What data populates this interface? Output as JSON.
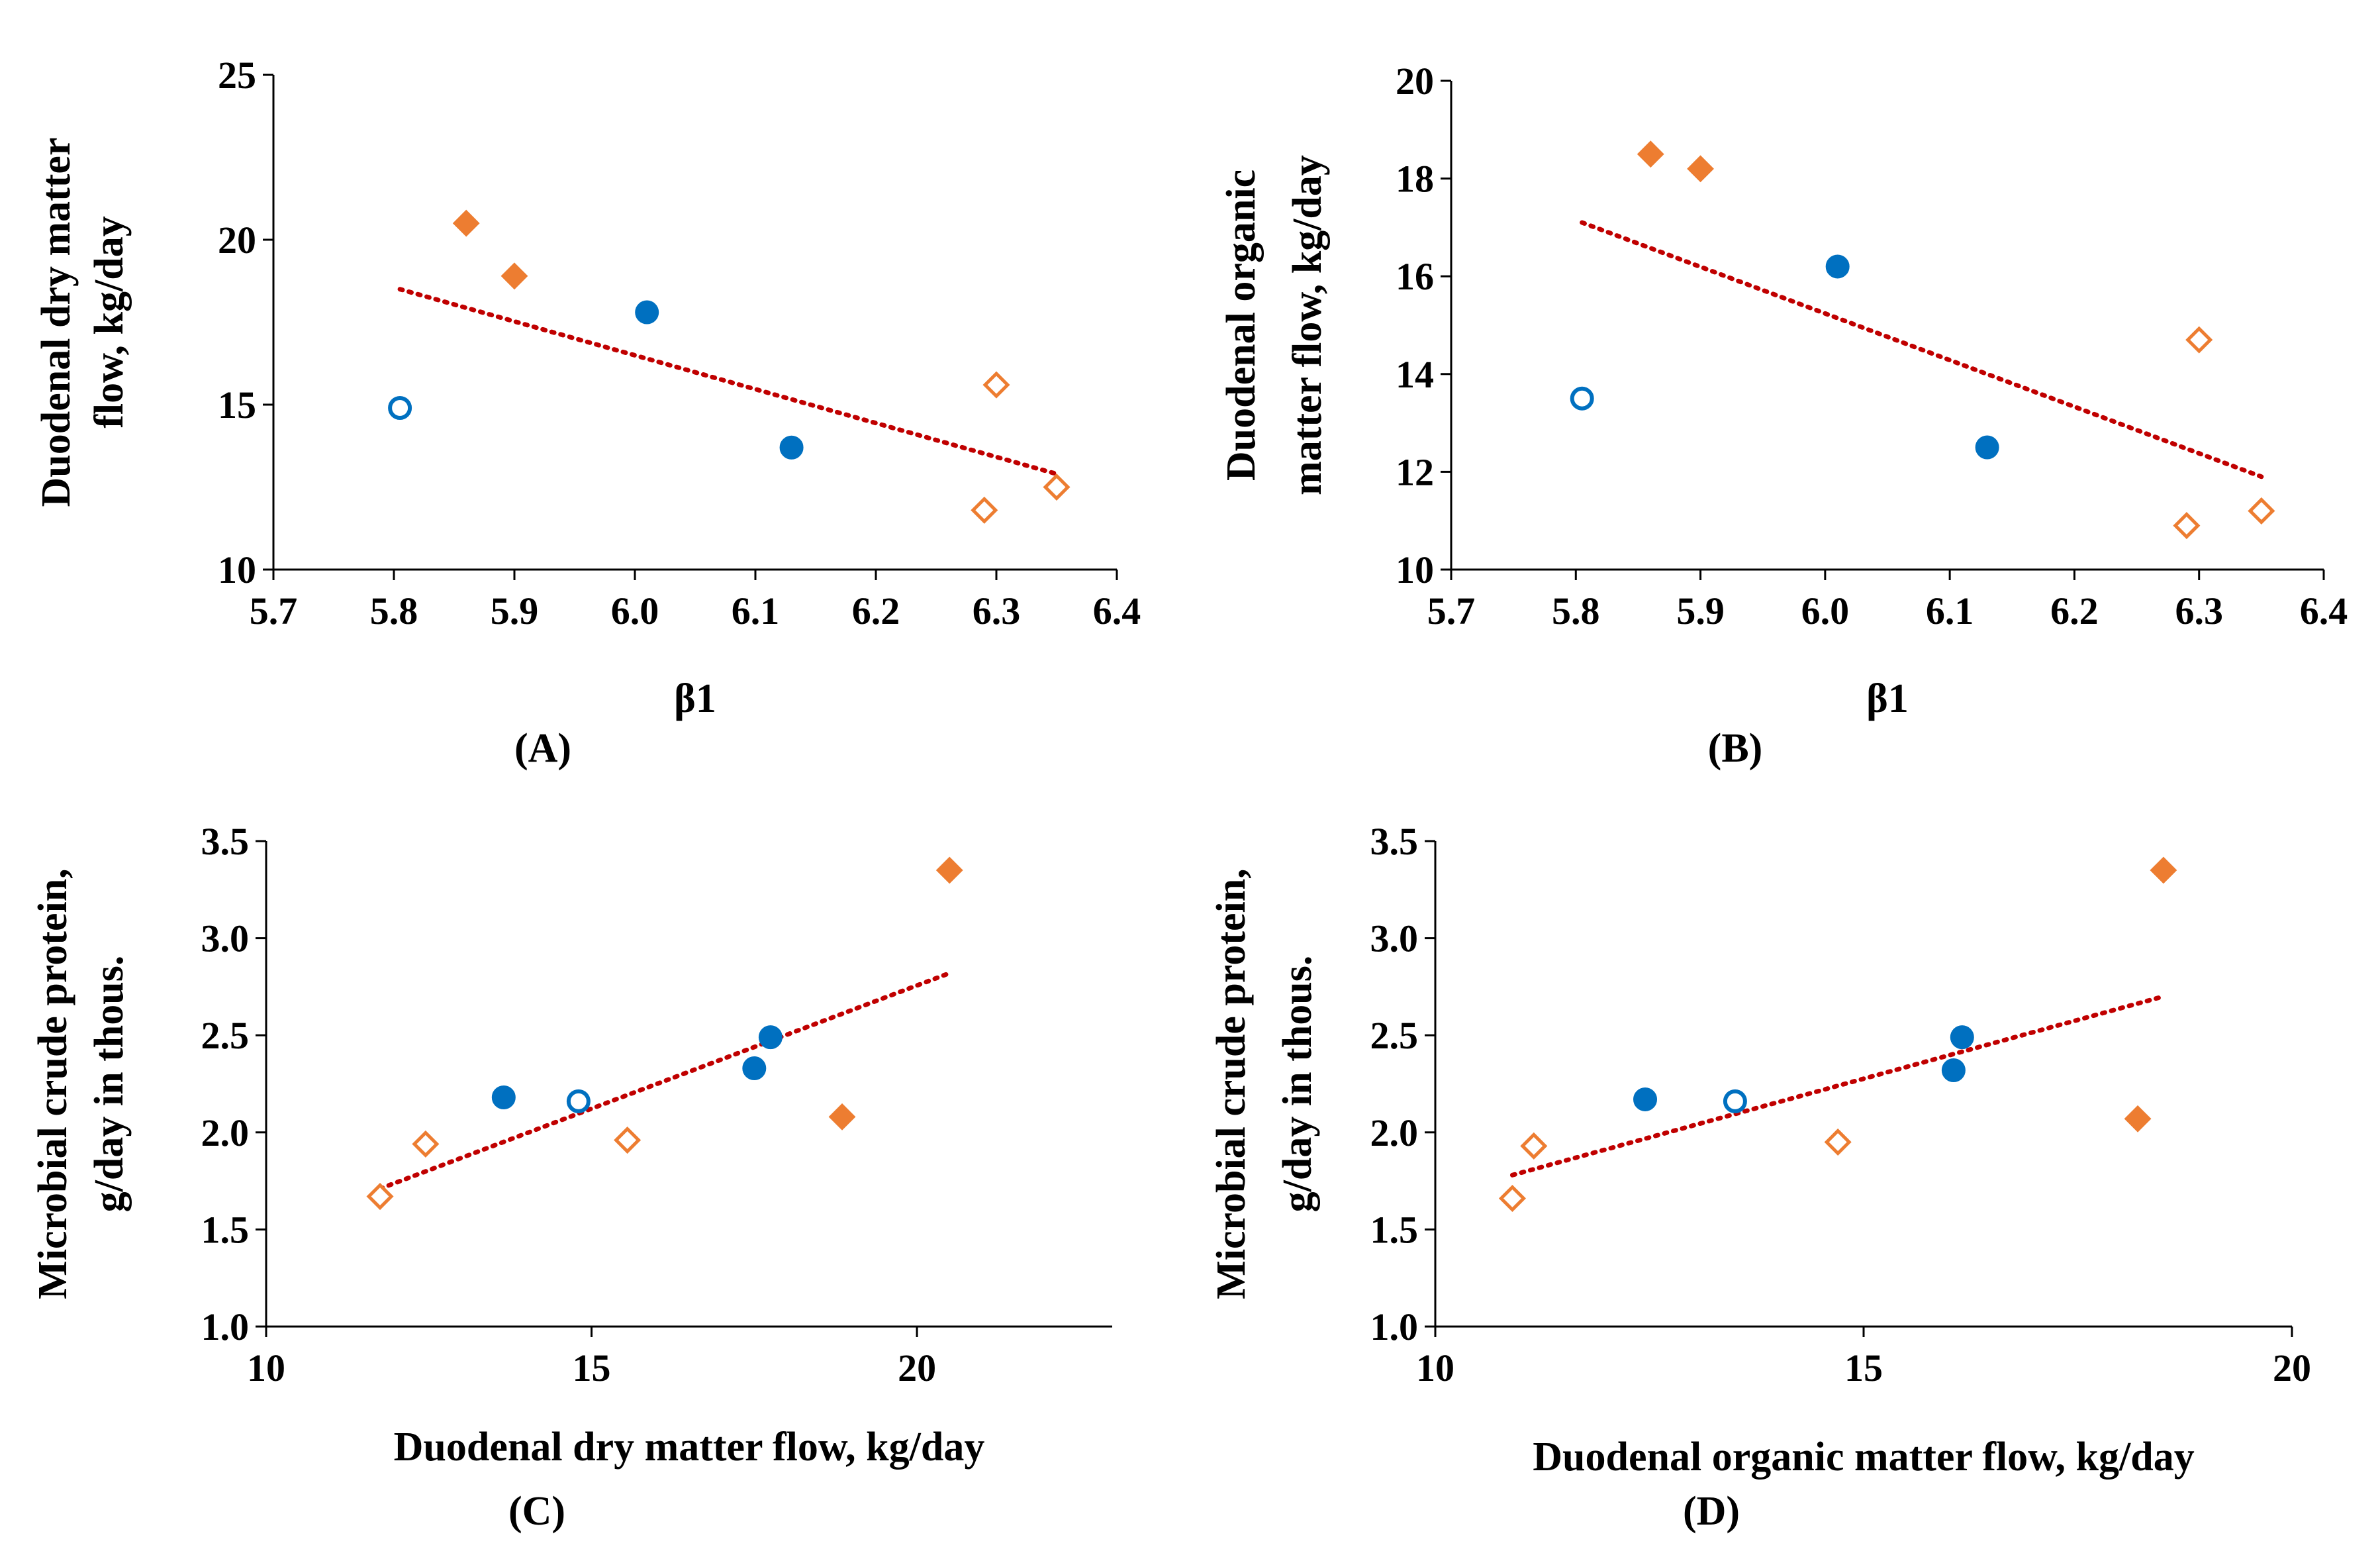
{
  "colors": {
    "blue": "#0070C0",
    "orange": "#ED7D31",
    "trend": "#C00000",
    "axis": "#000000"
  },
  "chart_data": [
    {
      "id": "A",
      "type": "scatter",
      "panel_label": "(A)",
      "xlabel": "β1",
      "ylabel_lines": [
        "Duodenal dry matter",
        "flow, kg/day"
      ],
      "xlim": [
        5.7,
        6.4
      ],
      "ylim": [
        10,
        25
      ],
      "x_ticks": [
        5.7,
        5.8,
        5.9,
        6.0,
        6.1,
        6.2,
        6.3,
        6.4
      ],
      "x_tick_labels": [
        "5.7",
        "5.8",
        "5.9",
        "6.0",
        "6.1",
        "6.2",
        "6.3",
        "6.4"
      ],
      "y_ticks": [
        10,
        15,
        20,
        25
      ],
      "y_tick_labels": [
        "10",
        "15",
        "20",
        "25"
      ],
      "series": [
        {
          "name": "blue-filled-circle",
          "marker": "circle",
          "filled": true,
          "color": "blue",
          "points": [
            [
              6.01,
              17.8
            ],
            [
              6.13,
              13.7
            ]
          ]
        },
        {
          "name": "blue-open-circle",
          "marker": "circle",
          "filled": false,
          "color": "blue",
          "points": [
            [
              5.805,
              14.9
            ]
          ]
        },
        {
          "name": "orange-filled-diamond",
          "marker": "diamond",
          "filled": true,
          "color": "orange",
          "points": [
            [
              5.86,
              20.5
            ],
            [
              5.9,
              18.9
            ]
          ]
        },
        {
          "name": "orange-open-diamond",
          "marker": "diamond",
          "filled": false,
          "color": "orange",
          "points": [
            [
              6.3,
              15.6
            ],
            [
              6.29,
              11.8
            ],
            [
              6.35,
              12.5
            ]
          ]
        }
      ],
      "trendline": [
        [
          5.805,
          18.5
        ],
        [
          6.35,
          12.9
        ]
      ]
    },
    {
      "id": "B",
      "type": "scatter",
      "panel_label": "(B)",
      "xlabel": "β1",
      "ylabel_lines": [
        "Duodenal organic",
        "matter flow, kg/day"
      ],
      "xlim": [
        5.7,
        6.4
      ],
      "ylim": [
        10,
        20
      ],
      "x_ticks": [
        5.7,
        5.8,
        5.9,
        6.0,
        6.1,
        6.2,
        6.3,
        6.4
      ],
      "x_tick_labels": [
        "5.7",
        "5.8",
        "5.9",
        "6.0",
        "6.1",
        "6.2",
        "6.3",
        "6.4"
      ],
      "y_ticks": [
        10,
        12,
        14,
        16,
        18,
        20
      ],
      "y_tick_labels": [
        "10",
        "12",
        "14",
        "16",
        "18",
        "20"
      ],
      "series": [
        {
          "name": "blue-filled-circle",
          "marker": "circle",
          "filled": true,
          "color": "blue",
          "points": [
            [
              6.01,
              16.2
            ],
            [
              6.13,
              12.5
            ]
          ]
        },
        {
          "name": "blue-open-circle",
          "marker": "circle",
          "filled": false,
          "color": "blue",
          "points": [
            [
              5.805,
              13.5
            ]
          ]
        },
        {
          "name": "orange-filled-diamond",
          "marker": "diamond",
          "filled": true,
          "color": "orange",
          "points": [
            [
              5.86,
              18.5
            ],
            [
              5.9,
              18.2
            ]
          ]
        },
        {
          "name": "orange-open-diamond",
          "marker": "diamond",
          "filled": false,
          "color": "orange",
          "points": [
            [
              6.3,
              14.7
            ],
            [
              6.29,
              10.9
            ],
            [
              6.35,
              11.2
            ]
          ]
        }
      ],
      "trendline": [
        [
          5.805,
          17.1
        ],
        [
          6.35,
          11.9
        ]
      ]
    },
    {
      "id": "C",
      "type": "scatter",
      "panel_label": "(C)",
      "xlabel": "Duodenal dry matter flow, kg/day",
      "ylabel_lines": [
        "Microbial crude protein,",
        "g/day in thous."
      ],
      "xlim": [
        10,
        23
      ],
      "ylim": [
        1.0,
        3.5
      ],
      "x_ticks": [
        10,
        15,
        20
      ],
      "x_tick_labels": [
        "10",
        "15",
        "20"
      ],
      "y_ticks": [
        1.0,
        1.5,
        2.0,
        2.5,
        3.0,
        3.5
      ],
      "y_tick_labels": [
        "1.0",
        "1.5",
        "2.0",
        "2.5",
        "3.0",
        "3.5"
      ],
      "series": [
        {
          "name": "blue-filled-circle",
          "marker": "circle",
          "filled": true,
          "color": "blue",
          "points": [
            [
              13.65,
              2.18
            ],
            [
              17.5,
              2.33
            ],
            [
              17.75,
              2.49
            ]
          ]
        },
        {
          "name": "blue-open-circle",
          "marker": "circle",
          "filled": false,
          "color": "blue",
          "points": [
            [
              14.8,
              2.16
            ]
          ]
        },
        {
          "name": "orange-filled-diamond",
          "marker": "diamond",
          "filled": true,
          "color": "orange",
          "points": [
            [
              20.5,
              3.35
            ],
            [
              18.85,
              2.08
            ]
          ]
        },
        {
          "name": "orange-open-diamond",
          "marker": "diamond",
          "filled": false,
          "color": "orange",
          "points": [
            [
              11.75,
              1.67
            ],
            [
              12.45,
              1.94
            ],
            [
              15.55,
              1.96
            ]
          ]
        }
      ],
      "trendline": [
        [
          11.75,
          1.71
        ],
        [
          20.5,
          2.82
        ]
      ]
    },
    {
      "id": "D",
      "type": "scatter",
      "panel_label": "(D)",
      "xlabel": "Duodenal organic matter flow, kg/day",
      "ylabel_lines": [
        "Microbial crude protein,",
        "g/day in thous."
      ],
      "xlim": [
        10,
        20
      ],
      "ylim": [
        1.0,
        3.5
      ],
      "x_ticks": [
        10,
        15,
        20
      ],
      "x_tick_labels": [
        "10",
        "15",
        "20"
      ],
      "y_ticks": [
        1.0,
        1.5,
        2.0,
        2.5,
        3.0,
        3.5
      ],
      "y_tick_labels": [
        "1.0",
        "1.5",
        "2.0",
        "2.5",
        "3.0",
        "3.5"
      ],
      "series": [
        {
          "name": "blue-filled-circle",
          "marker": "circle",
          "filled": true,
          "color": "blue",
          "points": [
            [
              12.45,
              2.17
            ],
            [
              16.05,
              2.32
            ],
            [
              16.15,
              2.49
            ]
          ]
        },
        {
          "name": "blue-open-circle",
          "marker": "circle",
          "filled": false,
          "color": "blue",
          "points": [
            [
              13.5,
              2.16
            ]
          ]
        },
        {
          "name": "orange-filled-diamond",
          "marker": "diamond",
          "filled": true,
          "color": "orange",
          "points": [
            [
              18.5,
              3.35
            ],
            [
              18.2,
              2.07
            ]
          ]
        },
        {
          "name": "orange-open-diamond",
          "marker": "diamond",
          "filled": false,
          "color": "orange",
          "points": [
            [
              10.9,
              1.66
            ],
            [
              11.15,
              1.93
            ],
            [
              14.7,
              1.95
            ]
          ]
        }
      ],
      "trendline": [
        [
          10.9,
          1.78
        ],
        [
          18.5,
          2.7
        ]
      ]
    }
  ]
}
